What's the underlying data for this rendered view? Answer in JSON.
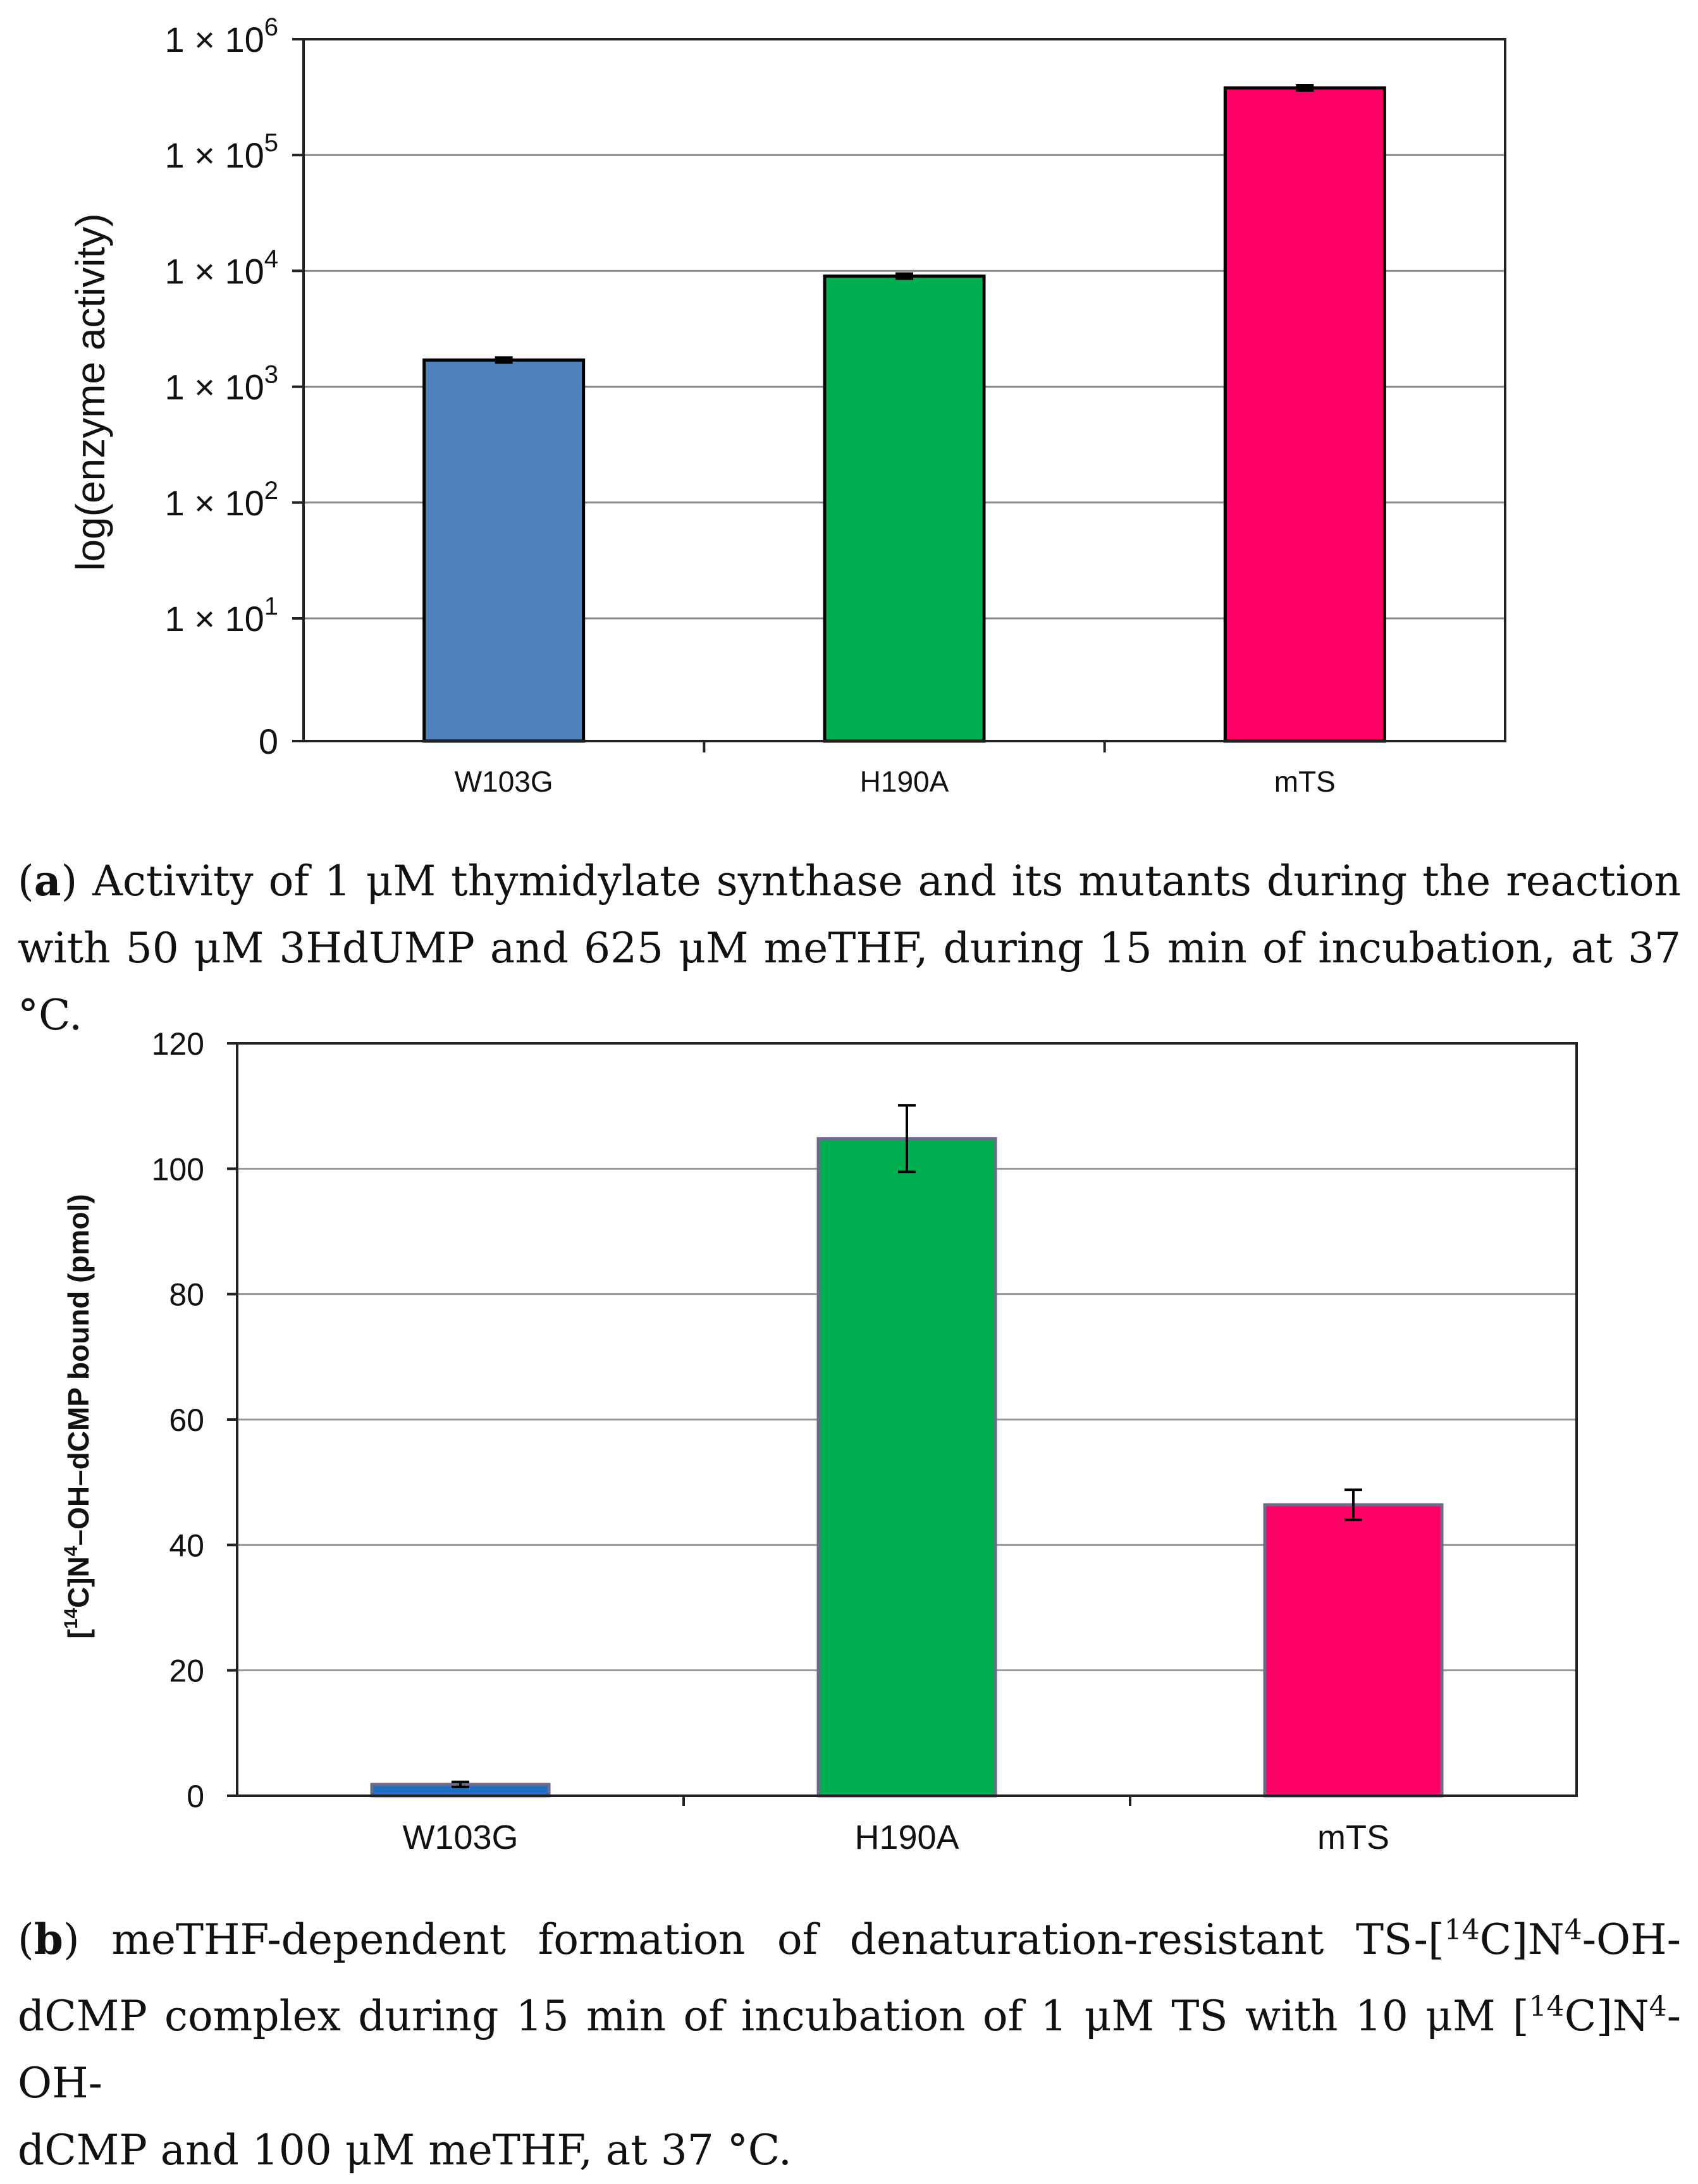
{
  "chart_data": [
    {
      "type": "bar",
      "panel": "a",
      "categories": [
        "W103G",
        "H190A",
        "mTS"
      ],
      "values": [
        1700,
        9000,
        380000
      ],
      "errors": [
        100,
        300,
        15000
      ],
      "colors": [
        "#4f81bd",
        "#00b050",
        "#ff0066"
      ],
      "ylabel": "log(enzyme activity)",
      "yscale": "log",
      "ylim": [
        1,
        1000000
      ],
      "yticks": [
        {
          "label_base": "0",
          "label_exp": ""
        },
        {
          "label_base": "1 × 10",
          "label_exp": "1"
        },
        {
          "label_base": "1 × 10",
          "label_exp": "2"
        },
        {
          "label_base": "1 × 10",
          "label_exp": "3"
        },
        {
          "label_base": "1 × 10",
          "label_exp": "4"
        },
        {
          "label_base": "1 × 10",
          "label_exp": "5"
        },
        {
          "label_base": "1 × 10",
          "label_exp": "6"
        }
      ],
      "grid": true
    },
    {
      "type": "bar",
      "panel": "b",
      "categories": [
        "W103G",
        "H190A",
        "mTS"
      ],
      "values": [
        1.8,
        104.8,
        46.4
      ],
      "errors": [
        0.4,
        5.3,
        2.4
      ],
      "colors": [
        "#1f6fc5",
        "#00b050",
        "#ff0066"
      ],
      "ylabel_parts": [
        "[",
        "14",
        "C]N",
        "4",
        "–OH–dCMP bound (pmol)"
      ],
      "yscale": "linear",
      "ylim": [
        0,
        120
      ],
      "yticks": [
        "0",
        "20",
        "40",
        "60",
        "80",
        "100",
        "120"
      ],
      "grid": true
    }
  ],
  "captions": {
    "a": {
      "label": "a",
      "line1": "Activity of 1 μM thymidylate synthase and its mutants during the reaction",
      "line2": "with 50 μM 3HdUMP and 625 μM meTHF, during 15 min of incubation, at 37 °C."
    },
    "b": {
      "label": "b",
      "line1_pre": "meTHF-dependent formation of denaturation-resistant TS-[",
      "line1_sup1": "14",
      "line1_mid": "C]N",
      "line1_sup2": "4",
      "line1_post": "-OH-",
      "line2_pre": "dCMP complex during 15 min of incubation of 1 μM TS with 10 μM [",
      "line2_sup1": "14",
      "line2_mid": "C]N",
      "line2_sup2": "4",
      "line2_post": "-OH-",
      "line3": "dCMP and 100 μM meTHF, at 37 °C."
    }
  }
}
